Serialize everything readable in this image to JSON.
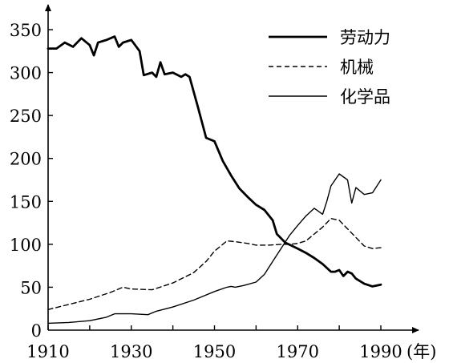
{
  "chart_data": {
    "type": "line",
    "title": "",
    "xlabel": "",
    "ylabel": "",
    "x_unit": "(年)",
    "xlim": [
      1910,
      1990
    ],
    "ylim": [
      0,
      350
    ],
    "x_ticks": [
      "1910",
      "1930",
      "1950",
      "1970",
      "1990"
    ],
    "y_ticks": [
      "0",
      "50",
      "100",
      "150",
      "200",
      "250",
      "300",
      "350"
    ],
    "legend_position": "top-right",
    "grid": false,
    "series": [
      {
        "name": "劳动力",
        "style": "thick-solid",
        "x": [
          1910,
          1912,
          1914,
          1916,
          1918,
          1920,
          1921,
          1922,
          1924,
          1926,
          1927,
          1928,
          1930,
          1932,
          1933,
          1935,
          1936,
          1937,
          1938,
          1940,
          1942,
          1943,
          1944,
          1946,
          1948,
          1950,
          1952,
          1954,
          1956,
          1958,
          1960,
          1962,
          1964,
          1965,
          1967,
          1970,
          1972,
          1974,
          1976,
          1978,
          1979,
          1980,
          1981,
          1982,
          1983,
          1984,
          1986,
          1988,
          1990
        ],
        "y": [
          328,
          328,
          335,
          330,
          340,
          332,
          320,
          335,
          338,
          342,
          330,
          335,
          338,
          325,
          297,
          300,
          295,
          312,
          298,
          300,
          295,
          298,
          295,
          260,
          224,
          220,
          197,
          180,
          165,
          155,
          146,
          140,
          128,
          112,
          102,
          95,
          90,
          84,
          77,
          68,
          68,
          70,
          63,
          68,
          66,
          60,
          54,
          51,
          53
        ]
      },
      {
        "name": "机械",
        "style": "dashed",
        "x": [
          1910,
          1915,
          1920,
          1925,
          1928,
          1930,
          1935,
          1940,
          1945,
          1948,
          1950,
          1953,
          1955,
          1958,
          1960,
          1963,
          1966,
          1968,
          1970,
          1972,
          1974,
          1976,
          1978,
          1980,
          1982,
          1984,
          1986,
          1988,
          1990
        ],
        "y": [
          24,
          30,
          36,
          44,
          50,
          48,
          47,
          55,
          67,
          80,
          92,
          104,
          103,
          101,
          99,
          99,
          100,
          100,
          101,
          104,
          112,
          120,
          130,
          128,
          118,
          108,
          98,
          95,
          96
        ]
      },
      {
        "name": "化学品",
        "style": "thin-solid",
        "x": [
          1910,
          1915,
          1920,
          1924,
          1926,
          1930,
          1934,
          1936,
          1940,
          1945,
          1950,
          1953,
          1954,
          1955,
          1957,
          1960,
          1962,
          1964,
          1966,
          1968,
          1970,
          1972,
          1974,
          1976,
          1977,
          1978,
          1980,
          1982,
          1983,
          1984,
          1986,
          1988,
          1990
        ],
        "y": [
          8,
          9,
          11,
          15,
          19,
          19,
          18,
          22,
          27,
          35,
          45,
          50,
          51,
          50,
          52,
          56,
          65,
          80,
          95,
          110,
          122,
          133,
          142,
          135,
          150,
          168,
          182,
          175,
          148,
          166,
          158,
          160,
          175
        ]
      }
    ]
  }
}
